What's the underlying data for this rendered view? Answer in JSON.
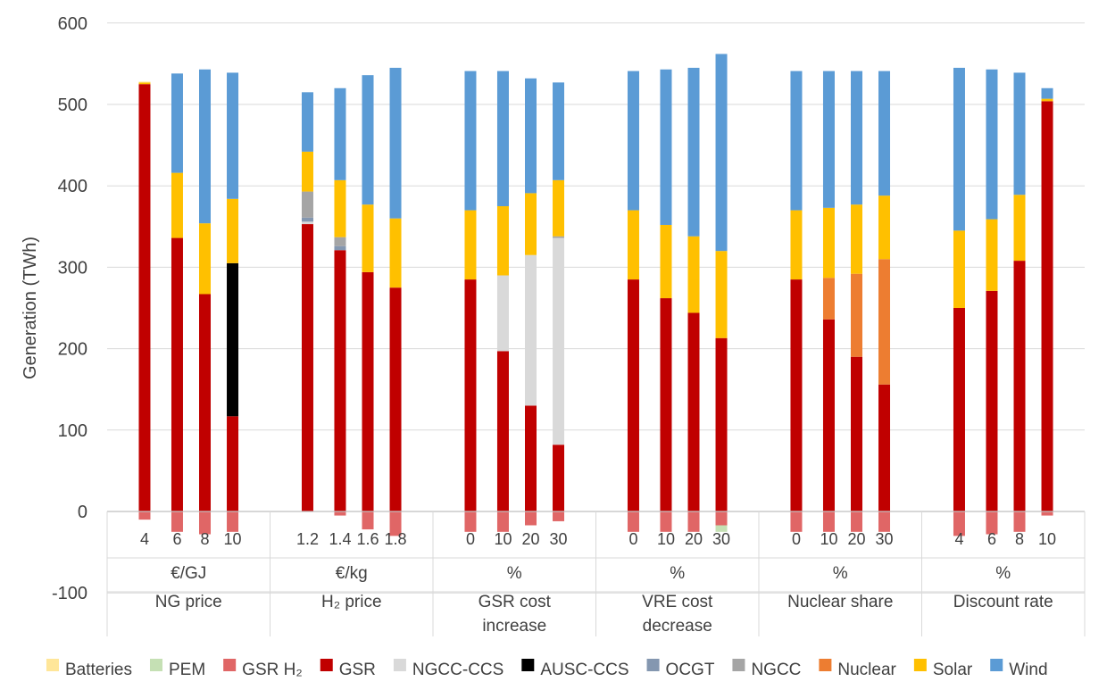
{
  "chart_data": {
    "type": "bar",
    "stacked": true,
    "ylabel": "Generation (TWh)",
    "ylim": [
      -100,
      600
    ],
    "yticks": [
      -100,
      0,
      100,
      200,
      300,
      400,
      500,
      600
    ],
    "grid": true,
    "legend_position": "bottom",
    "colors": {
      "Batteries": "#FFE699",
      "PEM": "#C5E0B4",
      "GSR H₂": "#E06666",
      "GSR": "#C00000",
      "NGCC-CCS": "#D9D9D9",
      "AUSC-CCS": "#000000",
      "OCGT": "#8497B0",
      "NGCC": "#A5A5A5",
      "Nuclear": "#ED7D31",
      "Solar": "#FFC000",
      "Wind": "#5B9BD5"
    },
    "legend": [
      "Batteries",
      "PEM",
      "GSR H₂",
      "GSR",
      "NGCC-CCS",
      "AUSC-CCS",
      "OCGT",
      "NGCC",
      "Nuclear",
      "Solar",
      "Wind"
    ],
    "groups": [
      {
        "label": "NG price",
        "unit": "€/GJ",
        "bars": [
          {
            "x": "4",
            "neg": {
              "GSR H₂": -10
            },
            "pos": {
              "GSR": 525,
              "Solar": 2,
              "Batteries": 1
            }
          },
          {
            "x": "6",
            "neg": {
              "GSR H₂": -25
            },
            "pos": {
              "GSR": 336,
              "Solar": 80,
              "Wind": 122
            }
          },
          {
            "x": "8",
            "neg": {
              "GSR H₂": -28
            },
            "pos": {
              "GSR": 267,
              "Solar": 87,
              "Wind": 189
            }
          },
          {
            "x": "10",
            "neg": {
              "GSR H₂": -25
            },
            "pos": {
              "GSR": 117,
              "AUSC-CCS": 188,
              "Solar": 79,
              "Wind": 155
            }
          }
        ]
      },
      {
        "label": "H₂ price",
        "unit": "€/kg",
        "bars": [
          {
            "x": "1.2",
            "neg": {},
            "pos": {
              "GSR": 353,
              "OCGT": 5,
              "NGCC-CCS": 3,
              "NGCC": 32,
              "Solar": 49,
              "Wind": 73
            }
          },
          {
            "x": "1.4",
            "neg": {
              "GSR H₂": -5
            },
            "pos": {
              "GSR": 321,
              "OCGT": 5,
              "NGCC": 11,
              "Solar": 70,
              "Wind": 113
            }
          },
          {
            "x": "1.6",
            "neg": {
              "GSR H₂": -22
            },
            "pos": {
              "GSR": 294,
              "Solar": 83,
              "Wind": 159
            }
          },
          {
            "x": "1.8",
            "neg": {
              "GSR H₂": -30
            },
            "pos": {
              "GSR": 275,
              "Solar": 85,
              "Wind": 185
            }
          }
        ]
      },
      {
        "label": "GSR cost increase",
        "unit": "%",
        "bars": [
          {
            "x": "0",
            "neg": {
              "GSR H₂": -25
            },
            "pos": {
              "GSR": 285,
              "Solar": 85,
              "Wind": 171
            }
          },
          {
            "x": "10",
            "neg": {
              "GSR H₂": -25
            },
            "pos": {
              "GSR": 197,
              "NGCC-CCS": 93,
              "Solar": 85,
              "Wind": 166
            }
          },
          {
            "x": "20",
            "neg": {
              "GSR H₂": -17
            },
            "pos": {
              "GSR": 130,
              "NGCC-CCS": 185,
              "Solar": 76,
              "Wind": 141
            }
          },
          {
            "x": "30",
            "neg": {
              "GSR H₂": -12
            },
            "pos": {
              "GSR": 82,
              "NGCC-CCS": 254,
              "NGCC": 2,
              "Solar": 69,
              "Wind": 120
            }
          }
        ]
      },
      {
        "label": "VRE cost decrease",
        "unit": "%",
        "bars": [
          {
            "x": "0",
            "neg": {
              "GSR H₂": -25
            },
            "pos": {
              "GSR": 285,
              "Solar": 85,
              "Wind": 171
            }
          },
          {
            "x": "10",
            "neg": {
              "GSR H₂": -25
            },
            "pos": {
              "GSR": 262,
              "Solar": 90,
              "Wind": 191
            }
          },
          {
            "x": "20",
            "neg": {
              "GSR H₂": -25
            },
            "pos": {
              "GSR": 244,
              "Solar": 94,
              "Wind": 207
            }
          },
          {
            "x": "30",
            "neg": {
              "PEM": -8,
              "GSR H₂": -17
            },
            "pos": {
              "GSR": 213,
              "Solar": 107,
              "Wind": 242
            }
          }
        ]
      },
      {
        "label": "Nuclear share",
        "unit": "%",
        "bars": [
          {
            "x": "0",
            "neg": {
              "GSR H₂": -25
            },
            "pos": {
              "GSR": 285,
              "Solar": 85,
              "Wind": 171
            }
          },
          {
            "x": "10",
            "neg": {
              "GSR H₂": -25
            },
            "pos": {
              "GSR": 236,
              "Nuclear": 51,
              "Solar": 86,
              "Wind": 168
            }
          },
          {
            "x": "20",
            "neg": {
              "GSR H₂": -25
            },
            "pos": {
              "GSR": 190,
              "Nuclear": 102,
              "Solar": 85,
              "Wind": 164
            }
          },
          {
            "x": "30",
            "neg": {
              "GSR H₂": -25
            },
            "pos": {
              "GSR": 156,
              "Nuclear": 154,
              "Solar": 78,
              "Wind": 153
            }
          }
        ]
      },
      {
        "label": "Discount rate",
        "unit": "%",
        "bars": [
          {
            "x": "4",
            "neg": {
              "GSR H₂": -30
            },
            "pos": {
              "GSR": 250,
              "Solar": 95,
              "Wind": 200
            }
          },
          {
            "x": "6",
            "neg": {
              "GSR H₂": -28
            },
            "pos": {
              "GSR": 271,
              "Solar": 88,
              "Wind": 184
            }
          },
          {
            "x": "8",
            "neg": {
              "GSR H₂": -25
            },
            "pos": {
              "GSR": 308,
              "Solar": 81,
              "Wind": 150
            }
          },
          {
            "x": "10",
            "neg": {
              "GSR H₂": -5
            },
            "pos": {
              "GSR": 504,
              "Solar": 3,
              "Wind": 13
            }
          }
        ]
      }
    ]
  }
}
